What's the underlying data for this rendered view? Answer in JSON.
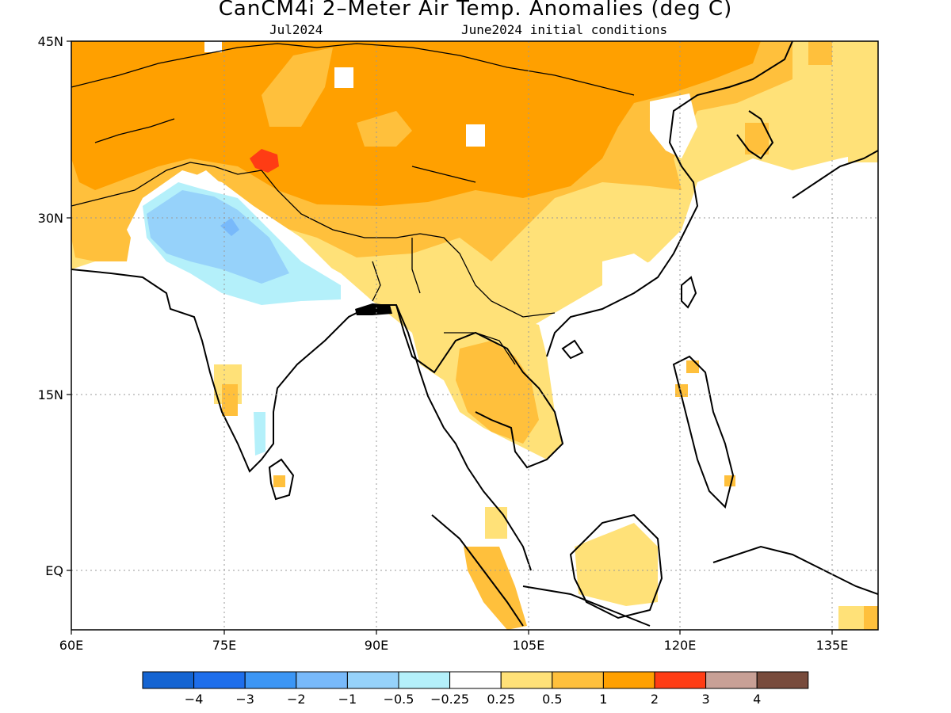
{
  "title": "CanCM4i 2–Meter Air Temp. Anomalies (deg C)",
  "valid_month": "Jul2024",
  "initial_conditions": "June2024 initial conditions",
  "lat_labels": [
    "45N",
    "30N",
    "15N",
    "EQ"
  ],
  "lon_labels": [
    "60E",
    "75E",
    "90E",
    "105E",
    "120E",
    "135E"
  ],
  "legend": {
    "colors": [
      "#1464d2",
      "#1e6eeb",
      "#3c96f5",
      "#78b9fa",
      "#96d2fa",
      "#b4f0fa",
      "#ffffff",
      "#ffe178",
      "#ffc03c",
      "#ffa000",
      "#ff3c14",
      "#c8a096",
      "#784b3c"
    ],
    "labels": [
      "−4",
      "−3",
      "−2",
      "−1",
      "−0.5",
      "−0.25",
      "0.25",
      "0.5",
      "1",
      "2",
      "3",
      "4"
    ]
  }
}
